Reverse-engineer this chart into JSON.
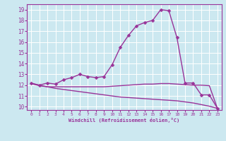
{
  "xlabel": "Windchill (Refroidissement éolien,°C)",
  "xlim": [
    -0.5,
    23.5
  ],
  "ylim": [
    9.7,
    19.5
  ],
  "yticks": [
    10,
    11,
    12,
    13,
    14,
    15,
    16,
    17,
    18,
    19
  ],
  "xticks": [
    0,
    1,
    2,
    3,
    4,
    5,
    6,
    7,
    8,
    9,
    10,
    11,
    12,
    13,
    14,
    15,
    16,
    17,
    18,
    19,
    20,
    21,
    22,
    23
  ],
  "bg_color": "#cce8f0",
  "grid_color": "#ffffff",
  "line_color": "#993399",
  "series": [
    {
      "x": [
        0,
        1,
        2,
        3,
        4,
        5,
        6,
        7,
        8,
        9,
        10,
        11,
        12,
        13,
        14,
        15,
        16,
        17,
        18,
        19,
        20,
        21,
        22,
        23
      ],
      "y": [
        12.2,
        12.0,
        12.2,
        12.1,
        12.5,
        12.7,
        13.0,
        12.8,
        12.7,
        12.8,
        13.9,
        15.5,
        16.6,
        17.5,
        17.8,
        18.0,
        19.0,
        18.9,
        16.4,
        12.2,
        12.2,
        11.1,
        11.1,
        9.85
      ],
      "marker": "D",
      "markersize": 2.5,
      "linewidth": 1.0
    },
    {
      "x": [
        0,
        1,
        2,
        3,
        4,
        5,
        6,
        7,
        8,
        9,
        10,
        11,
        12,
        13,
        14,
        15,
        16,
        17,
        18,
        19,
        20,
        21,
        22,
        23
      ],
      "y": [
        12.15,
        11.95,
        11.85,
        11.85,
        11.85,
        11.85,
        11.85,
        11.85,
        11.85,
        11.85,
        11.9,
        11.95,
        12.0,
        12.05,
        12.1,
        12.1,
        12.15,
        12.15,
        12.1,
        12.05,
        12.0,
        12.0,
        11.95,
        9.85
      ],
      "marker": null,
      "markersize": 0,
      "linewidth": 1.0
    },
    {
      "x": [
        0,
        1,
        2,
        3,
        4,
        5,
        6,
        7,
        8,
        9,
        10,
        11,
        12,
        13,
        14,
        15,
        16,
        17,
        18,
        19,
        20,
        21,
        22,
        23
      ],
      "y": [
        12.15,
        12.0,
        11.85,
        11.7,
        11.6,
        11.5,
        11.4,
        11.3,
        11.2,
        11.1,
        11.0,
        10.9,
        10.85,
        10.8,
        10.75,
        10.7,
        10.65,
        10.6,
        10.55,
        10.45,
        10.35,
        10.2,
        10.05,
        9.85
      ],
      "marker": null,
      "markersize": 0,
      "linewidth": 1.0
    }
  ]
}
